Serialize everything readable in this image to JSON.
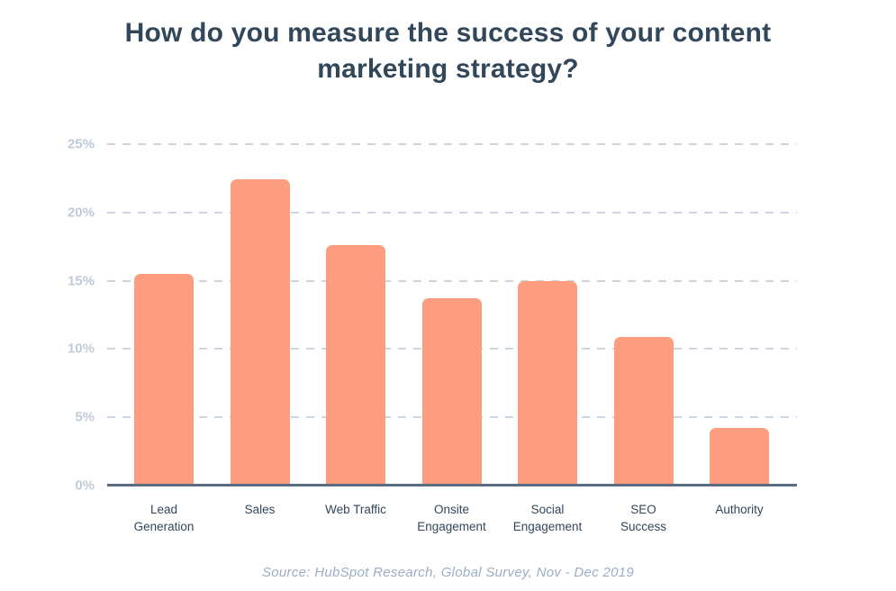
{
  "title": "How do you measure the success of your content marketing strategy?",
  "source": "Source: HubSpot Research, Global Survey, Nov - Dec 2019",
  "colors": {
    "title": "#33475B",
    "bar": "#FC9D80",
    "gridline": "#CBD6E2",
    "ytick": "#BFCBDB",
    "xtick": "#33475B",
    "axis_line": "#5B6C80",
    "source": "#9AAEC6"
  },
  "chart_data": {
    "type": "bar",
    "title": "How do you measure the success of your content marketing strategy?",
    "categories": [
      "Lead Generation",
      "Sales",
      "Web Traffic",
      "Onsite Engagement",
      "Social Engagement",
      "SEO Success",
      "Authority"
    ],
    "category_label_lines": [
      [
        "Lead",
        "Generation"
      ],
      [
        "Sales"
      ],
      [
        "Web Traffic"
      ],
      [
        "Onsite",
        "Engagement"
      ],
      [
        "Social",
        "Engagement"
      ],
      [
        "SEO",
        "Success"
      ],
      [
        "Authority"
      ]
    ],
    "values": [
      15.5,
      22.4,
      17.6,
      13.7,
      15.0,
      10.9,
      4.2
    ],
    "unit": "%",
    "xlabel": "",
    "ylabel": "",
    "ylim": [
      0,
      25
    ],
    "yticks": [
      0,
      5,
      10,
      15,
      20,
      25
    ],
    "ytick_labels": [
      "0%",
      "5%",
      "10%",
      "15%",
      "20%",
      "25%"
    ],
    "grid": "horizontal-dashed",
    "legend": "none",
    "bar_color": "#FC9D80",
    "caption": "Source: HubSpot Research, Global Survey, Nov - Dec 2019"
  }
}
